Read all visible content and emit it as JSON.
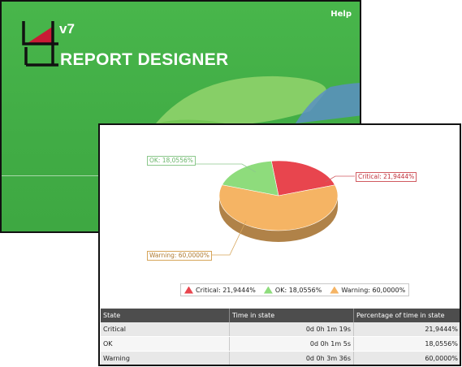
{
  "splash": {
    "help_label": "Help",
    "version": "v7",
    "title": "REPORT DESIGNER"
  },
  "chart_data": {
    "type": "pie",
    "slices": [
      {
        "label": "Critical",
        "value": 21.9444,
        "display": "Critical: 21,9444%",
        "color": "#e8454e"
      },
      {
        "label": "OK",
        "value": 18.0556,
        "display": "OK: 18,0556%",
        "color": "#8edc7c"
      },
      {
        "label": "Warning",
        "value": 60.0,
        "display": "Warning: 60,0000%",
        "color": "#f5b464"
      }
    ],
    "legend_position": "bottom"
  },
  "table": {
    "headers": [
      "State",
      "Time in state",
      "Percentage of time in state"
    ],
    "rows": [
      {
        "state": "Critical",
        "time": "0d 0h 1m 19s",
        "pct": "21,9444%"
      },
      {
        "state": "OK",
        "time": "0d 0h 1m 5s",
        "pct": "18,0556%"
      },
      {
        "state": "Warning",
        "time": "0d 0h 3m 36s",
        "pct": "60,0000%"
      }
    ]
  },
  "colors": {
    "splash_green": "#45b148",
    "table_header": "#4d4d4d"
  }
}
